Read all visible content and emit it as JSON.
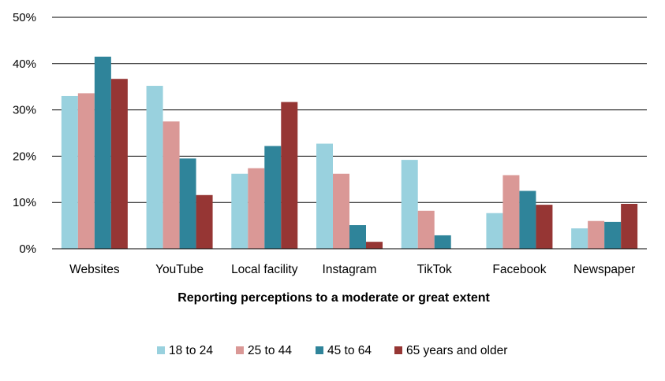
{
  "chart_data": {
    "type": "bar",
    "title": "",
    "xlabel": "Reporting perceptions to a moderate or great extent",
    "ylabel": "",
    "ylim": [
      0,
      50
    ],
    "yticks": [
      "0%",
      "10%",
      "20%",
      "30%",
      "40%",
      "50%"
    ],
    "categories": [
      "Websites",
      "YouTube",
      "Local facility",
      "Instagram",
      "TikTok",
      "Facebook",
      "Newspaper"
    ],
    "series": [
      {
        "name": "18 to 24",
        "color": "#99d1de",
        "values": [
          33,
          35.2,
          16.2,
          22.7,
          19.2,
          7.7,
          4.4
        ]
      },
      {
        "name": "25 to 44",
        "color": "#da9896",
        "values": [
          33.6,
          27.5,
          17.4,
          16.2,
          8.2,
          15.9,
          6
        ]
      },
      {
        "name": "45 to 64",
        "color": "#2f849a",
        "values": [
          41.5,
          19.5,
          22.2,
          5.1,
          2.9,
          12.5,
          5.8
        ]
      },
      {
        "name": "65 years and older",
        "color": "#963634",
        "values": [
          36.7,
          11.6,
          31.7,
          1.5,
          0,
          9.5,
          9.7
        ]
      }
    ],
    "grid": true,
    "legend_position": "bottom"
  }
}
